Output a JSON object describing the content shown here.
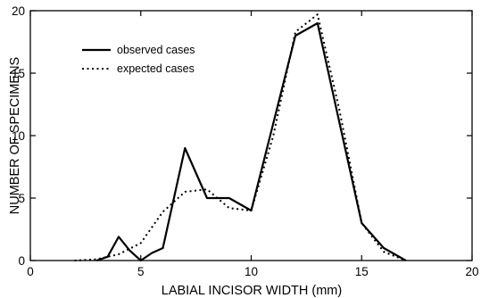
{
  "chart_data": {
    "type": "line",
    "title": "",
    "xlabel": "LABIAL INCISOR WIDTH (mm)",
    "ylabel": "NUMBER OF SPECIMENS",
    "xlim": [
      0,
      20
    ],
    "ylim": [
      0,
      20
    ],
    "xticks": [
      0,
      5,
      10,
      15,
      20
    ],
    "yticks": [
      0,
      5,
      10,
      15,
      20
    ],
    "grid": false,
    "legend_position": "top-left",
    "series": [
      {
        "name": "observed cases",
        "style": "solid",
        "color": "#000000",
        "points": [
          [
            3,
            0
          ],
          [
            3.5,
            0.3
          ],
          [
            4,
            1.9
          ],
          [
            4.5,
            0.8
          ],
          [
            5,
            0
          ],
          [
            5.5,
            0.6
          ],
          [
            6,
            1
          ],
          [
            7,
            9
          ],
          [
            8,
            5
          ],
          [
            9,
            5
          ],
          [
            10,
            4
          ],
          [
            11,
            11
          ],
          [
            12,
            18
          ],
          [
            13,
            19
          ],
          [
            14,
            11
          ],
          [
            15,
            3
          ],
          [
            16,
            1
          ],
          [
            17,
            0
          ]
        ]
      },
      {
        "name": "expected cases",
        "style": "dotted",
        "color": "#000000",
        "points": [
          [
            2,
            0
          ],
          [
            3,
            0.1
          ],
          [
            4,
            0.5
          ],
          [
            5,
            1.4
          ],
          [
            6,
            3.9
          ],
          [
            7,
            5.5
          ],
          [
            8,
            5.7
          ],
          [
            9,
            4.2
          ],
          [
            10,
            4
          ],
          [
            11,
            10
          ],
          [
            12,
            18.3
          ],
          [
            13,
            19.7
          ],
          [
            14,
            12
          ],
          [
            15,
            3
          ],
          [
            16,
            0.7
          ],
          [
            17,
            0
          ]
        ]
      }
    ]
  }
}
